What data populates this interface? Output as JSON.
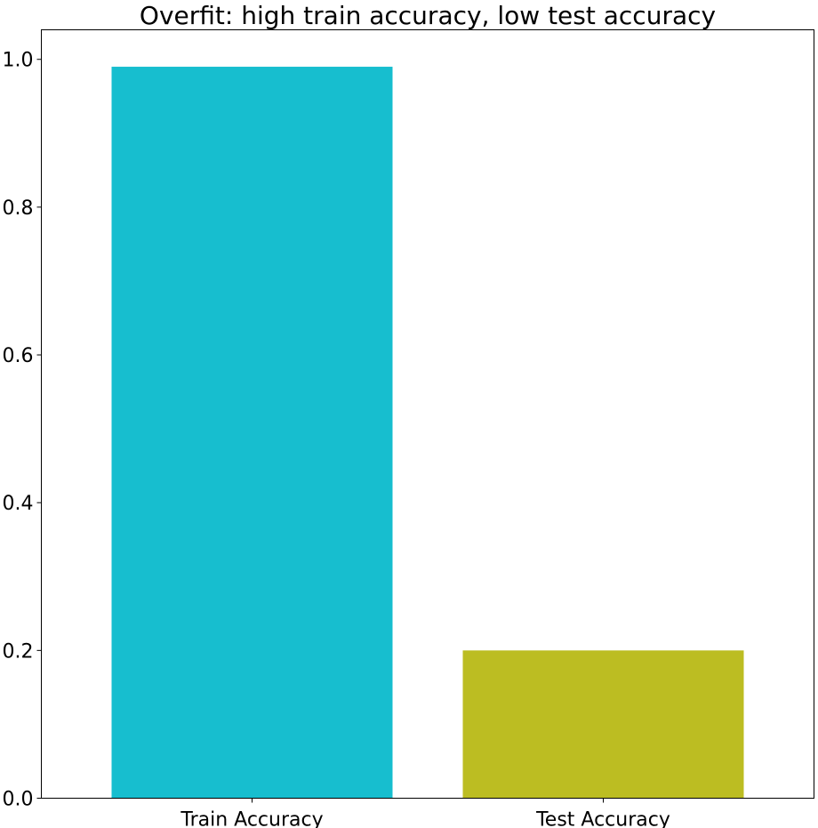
{
  "chart_data": {
    "type": "bar",
    "title": "Overfit: high train accuracy, low test accuracy",
    "xlabel": "",
    "ylabel": "",
    "categories": [
      "Train Accuracy",
      "Test Accuracy"
    ],
    "values": [
      0.99,
      0.2
    ],
    "colors": [
      "#17becf",
      "#bcbd22"
    ],
    "ylim": [
      0,
      1.04
    ],
    "yticks": [
      0.0,
      0.2,
      0.4,
      0.6,
      0.8,
      1.0
    ],
    "ytick_labels": [
      "0.0",
      "0.2",
      "0.4",
      "0.6",
      "0.8",
      "1.0"
    ],
    "grid": false,
    "legend": "none"
  }
}
